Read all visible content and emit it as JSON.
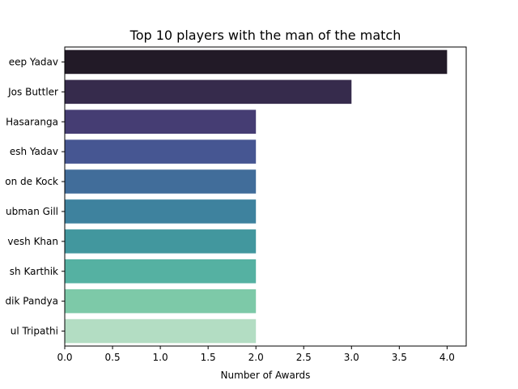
{
  "chart_data": {
    "type": "bar",
    "orientation": "horizontal",
    "title": "Top 10 players with the man of the match",
    "xlabel": "Number of Awards",
    "ylabel": "",
    "categories": [
      "eep Yadav",
      "Jos Buttler",
      "Hasaranga",
      "esh Yadav",
      "on de Kock",
      "ubman Gill",
      "vesh Khan",
      "sh Karthik",
      "dik Pandya",
      "ul Tripathi"
    ],
    "values": [
      4,
      3,
      2,
      2,
      2,
      2,
      2,
      2,
      2,
      2
    ],
    "xlim": [
      0,
      4.2
    ],
    "xticks": [
      "0.0",
      "0.5",
      "1.0",
      "1.5",
      "2.0",
      "2.5",
      "3.0",
      "3.5",
      "4.0"
    ],
    "colors": [
      "#221a27",
      "#362b4c",
      "#453d73",
      "#465692",
      "#416d9a",
      "#3e829e",
      "#42979e",
      "#55b1a2",
      "#7dc9a8",
      "#b3ddc3"
    ],
    "grid": false,
    "legend": "none"
  }
}
